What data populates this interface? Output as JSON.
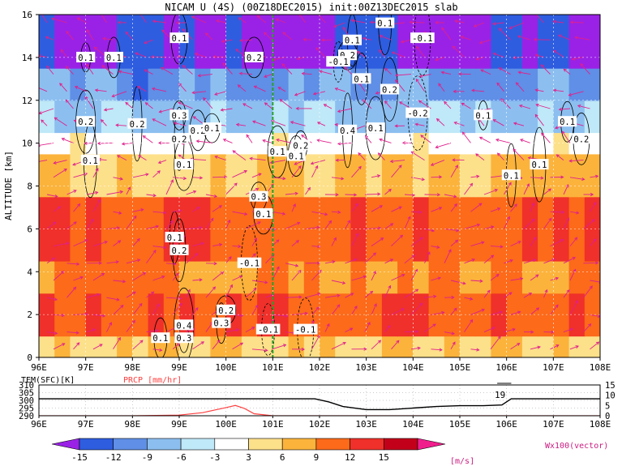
{
  "chart_data": [
    {
      "type": "heatmap",
      "title": "NICAM U (4S) (00Z18DEC2015) init:00Z13DEC2015 slab",
      "ylabel": "ALTITUDE [km]",
      "xlim": [
        96,
        108
      ],
      "ylim": [
        0,
        16
      ],
      "x_tick_labels": [
        "96E",
        "97E",
        "98E",
        "99E",
        "100E",
        "101E",
        "102E",
        "103E",
        "104E",
        "105E",
        "106E",
        "107E",
        "108E"
      ],
      "y_tick_labels": [
        "0",
        "2",
        "4",
        "6",
        "8",
        "10",
        "12",
        "14",
        "16"
      ],
      "altitude_bands": [
        {
          "z": [
            0,
            1
          ],
          "u": 6
        },
        {
          "z": [
            1,
            3
          ],
          "u": 12
        },
        {
          "z": [
            3,
            4.5
          ],
          "u": 9
        },
        {
          "z": [
            4.5,
            7.5
          ],
          "u": 12
        },
        {
          "z": [
            7.5,
            9.5
          ],
          "u": 6
        },
        {
          "z": [
            9.5,
            10.5
          ],
          "u": 1
        },
        {
          "z": [
            10.5,
            12
          ],
          "u": -6
        },
        {
          "z": [
            12,
            13.5
          ],
          "u": -10
        },
        {
          "z": [
            13.5,
            16
          ],
          "u": -15
        }
      ],
      "contour_labels": [
        {
          "text": "0.1",
          "x": 97.0,
          "y": 14.0
        },
        {
          "text": "0.1",
          "x": 97.6,
          "y": 14.0
        },
        {
          "text": "0.1",
          "x": 99.0,
          "y": 14.9
        },
        {
          "text": "0.2",
          "x": 97.0,
          "y": 11.0
        },
        {
          "text": "0.2",
          "x": 98.1,
          "y": 10.9
        },
        {
          "text": "0.3",
          "x": 99.0,
          "y": 11.3
        },
        {
          "text": "0.2",
          "x": 99.4,
          "y": 10.6
        },
        {
          "text": "0.1",
          "x": 99.1,
          "y": 9.0
        },
        {
          "text": "0.2",
          "x": 99.0,
          "y": 10.2
        },
        {
          "text": "0.1",
          "x": 97.1,
          "y": 9.2
        },
        {
          "text": "0.1",
          "x": 99.7,
          "y": 10.7
        },
        {
          "text": "0.2",
          "x": 100.6,
          "y": 14.0
        },
        {
          "text": "0.1",
          "x": 102.7,
          "y": 14.8
        },
        {
          "text": "0.1",
          "x": 103.4,
          "y": 15.6
        },
        {
          "text": "-0.1",
          "x": 104.2,
          "y": 14.9
        },
        {
          "text": "0.2",
          "x": 102.6,
          "y": 14.1
        },
        {
          "text": "-0.1",
          "x": 102.4,
          "y": 13.8
        },
        {
          "text": "0.1",
          "x": 102.9,
          "y": 13.0
        },
        {
          "text": "0.2",
          "x": 103.5,
          "y": 12.5
        },
        {
          "text": "-0.2",
          "x": 104.1,
          "y": 11.4
        },
        {
          "text": "0.1",
          "x": 105.5,
          "y": 11.3
        },
        {
          "text": "0.1",
          "x": 107.3,
          "y": 11.0
        },
        {
          "text": "0.2",
          "x": 107.6,
          "y": 10.2
        },
        {
          "text": "0.1",
          "x": 103.2,
          "y": 10.7
        },
        {
          "text": "0.4",
          "x": 102.6,
          "y": 10.6
        },
        {
          "text": "0.2",
          "x": 101.6,
          "y": 9.9
        },
        {
          "text": "0.1",
          "x": 101.5,
          "y": 9.4
        },
        {
          "text": "0.1",
          "x": 101.1,
          "y": 9.6
        },
        {
          "text": "0.1",
          "x": 106.1,
          "y": 8.5
        },
        {
          "text": "0.1",
          "x": 106.7,
          "y": 9.0
        },
        {
          "text": "0.3",
          "x": 100.7,
          "y": 7.5
        },
        {
          "text": "0.1",
          "x": 100.8,
          "y": 6.7
        },
        {
          "text": "0.1",
          "x": 98.9,
          "y": 5.6
        },
        {
          "text": "0.2",
          "x": 99.0,
          "y": 5.0
        },
        {
          "text": "-0.1",
          "x": 100.5,
          "y": 4.4
        },
        {
          "text": "0.2",
          "x": 100.0,
          "y": 2.2
        },
        {
          "text": "0.3",
          "x": 99.9,
          "y": 1.6
        },
        {
          "text": "-0.1",
          "x": 100.9,
          "y": 1.3
        },
        {
          "text": "-0.1",
          "x": 101.7,
          "y": 1.3
        },
        {
          "text": "0.4",
          "x": 99.1,
          "y": 1.5
        },
        {
          "text": "0.3",
          "x": 99.1,
          "y": 0.9
        },
        {
          "text": "0.1",
          "x": 98.6,
          "y": 0.9
        }
      ],
      "section_line_x": 101,
      "colorbar": {
        "tick_labels": [
          "-15",
          "-12",
          "-9",
          "-6",
          "-3",
          "3",
          "6",
          "9",
          "12",
          "15"
        ],
        "units": "[m/s]",
        "vector_label": "Wx100(vector)",
        "colors": [
          "#9a22e6",
          "#2f5de0",
          "#5f8fe6",
          "#8cbff0",
          "#bfe8f8",
          "#ffffff",
          "#fde08a",
          "#fcb33c",
          "#fc6a1a",
          "#f0302a",
          "#c3001a",
          "#f01e8c"
        ]
      }
    },
    {
      "type": "line",
      "xlim": [
        96,
        108
      ],
      "temperature_label": "TEM(SFC)[K]",
      "precip_label": "PRCP [mm/hr]",
      "left_axis_ticks": [
        "310",
        "305",
        "300",
        "295",
        "290"
      ],
      "right_axis_ticks": [
        "15",
        "10",
        "5",
        "0"
      ],
      "left_ylim": [
        290,
        310
      ],
      "right_ylim": [
        0,
        15
      ],
      "point_annotation": "19",
      "series": [
        {
          "name": "TEM(SFC)[K]",
          "color": "#000000",
          "x": [
            96,
            97,
            98,
            99,
            100,
            101,
            101.9,
            102.2,
            102.5,
            103,
            103.5,
            104,
            104.5,
            105,
            105.5,
            105.9,
            106.1,
            107,
            108
          ],
          "y": [
            301,
            301,
            301,
            301,
            301,
            301,
            301,
            299,
            296,
            294,
            294,
            295,
            296,
            296.5,
            296.5,
            297,
            301,
            301,
            301
          ]
        },
        {
          "name": "PRCP [mm/hr]",
          "color": "#ff4040",
          "x": [
            96,
            98,
            99,
            99.5,
            99.8,
            100,
            100.2,
            100.4,
            100.6,
            101,
            103,
            105,
            108
          ],
          "y": [
            0,
            0,
            0.3,
            1.5,
            3,
            4,
            5,
            3.5,
            1,
            0,
            0,
            0,
            0
          ]
        }
      ]
    }
  ]
}
